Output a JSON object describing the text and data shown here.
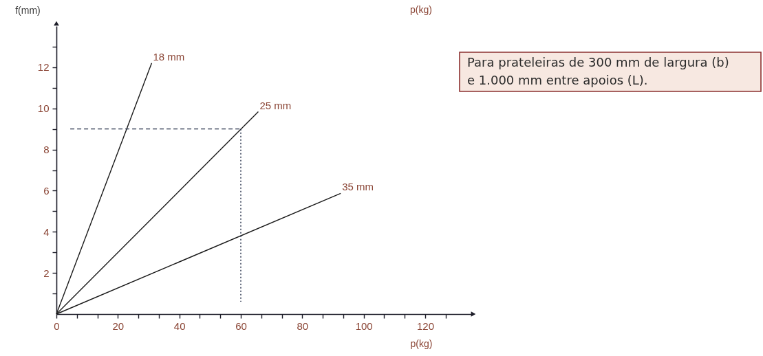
{
  "chart_data": {
    "type": "line",
    "xlabel": "p(kg)",
    "ylabel": "f(mm)",
    "xlim": [
      0,
      135
    ],
    "ylim": [
      0,
      14
    ],
    "xticks": [
      0,
      {
        "value": 6.67,
        "label": null
      },
      {
        "value": 13.33,
        "label": null
      },
      20,
      {
        "value": 26.67,
        "label": null
      },
      {
        "value": 33.33,
        "label": null
      },
      40,
      {
        "value": 46.67,
        "label": null
      },
      {
        "value": 53.33,
        "label": null
      },
      60,
      {
        "value": 66.67,
        "label": null
      },
      {
        "value": 73.33,
        "label": null
      },
      80,
      {
        "value": 86.67,
        "label": null
      },
      {
        "value": 93.33,
        "label": null
      },
      100,
      {
        "value": 106.67,
        "label": null
      },
      {
        "value": 113.33,
        "label": null
      },
      120,
      {
        "value": 126.67,
        "label": null
      }
    ],
    "yticks": [
      {
        "value": 1,
        "label": null
      },
      2,
      {
        "value": 3,
        "label": null
      },
      4,
      {
        "value": 5,
        "label": null
      },
      6,
      {
        "value": 7,
        "label": null
      },
      8,
      {
        "value": 9,
        "label": null
      },
      10,
      {
        "value": 11,
        "label": null
      },
      12,
      {
        "value": 13,
        "label": null
      }
    ],
    "line_style": "solid",
    "series": [
      {
        "name": "18 mm",
        "color": "#1a1a1a",
        "x": [
          0,
          31
        ],
        "values": [
          0,
          12.2
        ]
      },
      {
        "name": "25 mm",
        "color": "#1a1a1a",
        "x": [
          0,
          65.7
        ],
        "values": [
          0,
          9.84
        ]
      },
      {
        "name": "35 mm",
        "color": "#1a1a1a",
        "x": [
          0,
          92.5
        ],
        "values": [
          0,
          5.87
        ]
      },
      {
        "color": "#1f2a44",
        "line_style": "dashed",
        "x": [
          4.5,
          60
        ],
        "values": [
          9,
          9
        ]
      },
      {
        "color": "#1f2a44",
        "line_style": "dotted",
        "x": [
          60,
          60
        ],
        "values": [
          9,
          0.6
        ]
      }
    ],
    "annotations": [
      "p(kg)",
      "Para prateleiras de 300 mm de largura (b)\ne 1.000 mm entre apoios (L)."
    ]
  }
}
